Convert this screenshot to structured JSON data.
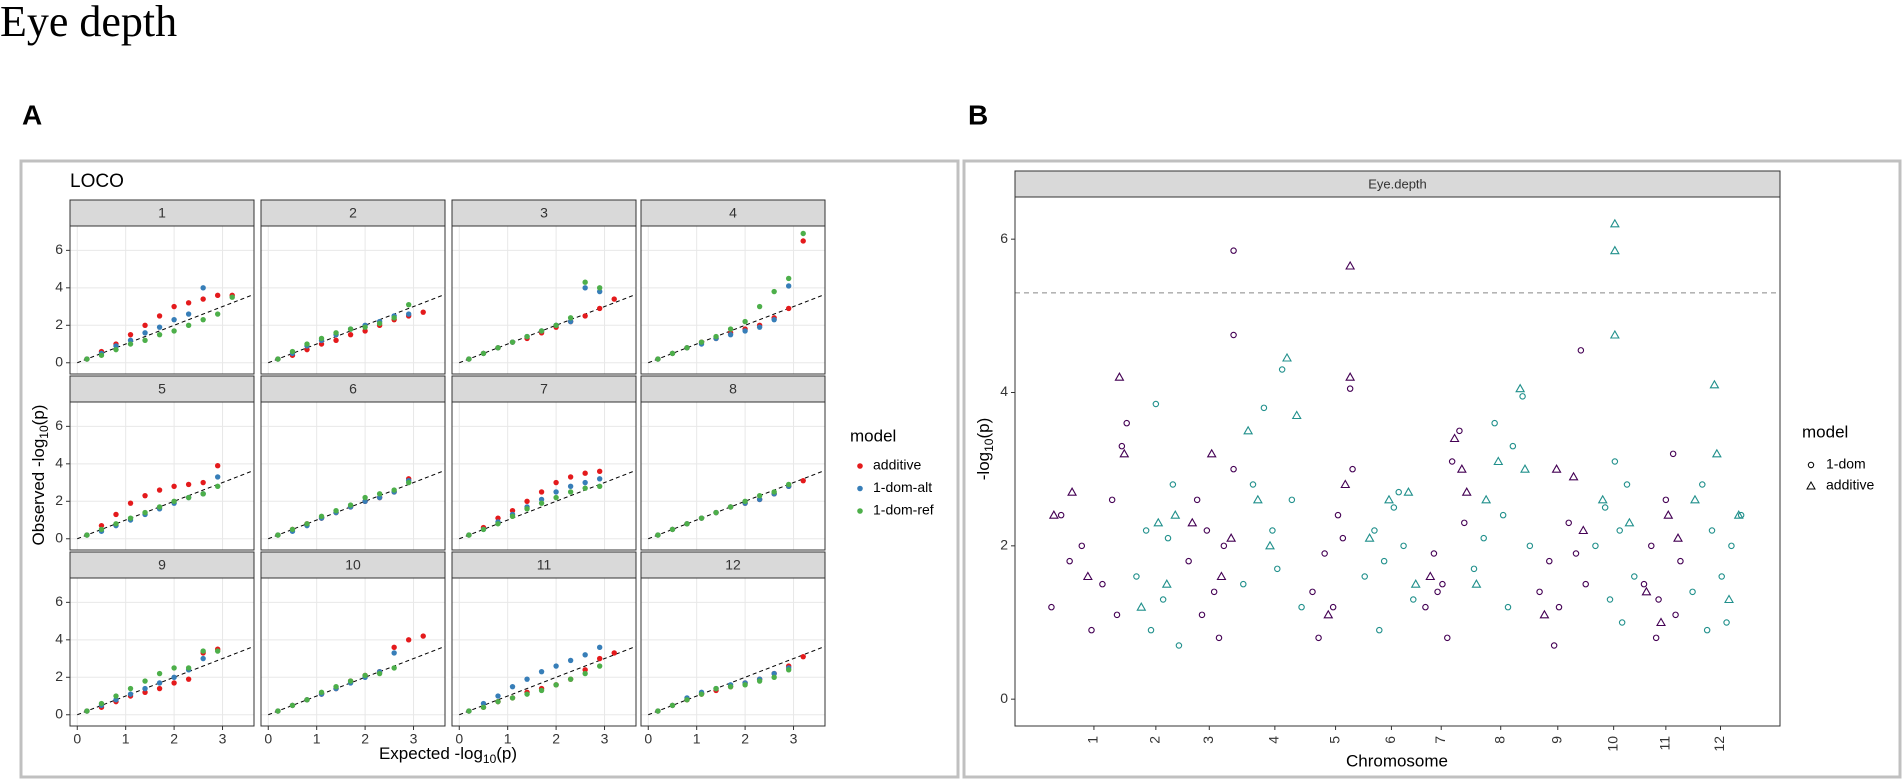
{
  "title": "Eye depth",
  "chart_data": [
    {
      "type": "qq-facets",
      "panel_label": "A",
      "subtitle": "LOCO",
      "x_label": {
        "prefix": "Expected -log",
        "sub": "10",
        "suffix": "(p)"
      },
      "y_label": {
        "prefix": "Observed -log",
        "sub": "10",
        "suffix": "(p)"
      },
      "xlim": [
        -0.15,
        3.65
      ],
      "ylim": [
        -0.6,
        7.3
      ],
      "xticks": [
        0,
        1,
        2,
        3
      ],
      "yticks": [
        0,
        2,
        4,
        6
      ],
      "grid": true,
      "legend_title": "model",
      "legend_position": "right",
      "series": [
        {
          "name": "additive",
          "color": "#e41a1c"
        },
        {
          "name": "1-dom-alt",
          "color": "#377eb8"
        },
        {
          "name": "1-dom-ref",
          "color": "#4daf4a"
        }
      ],
      "x": [
        0.2,
        0.5,
        0.8,
        1.1,
        1.4,
        1.7,
        2.0,
        2.3,
        2.6,
        2.9,
        3.2
      ],
      "facets": [
        {
          "title": "1",
          "values": [
            [
              0.2,
              0.6,
              1.0,
              1.5,
              2.0,
              2.5,
              3.0,
              3.2,
              3.4,
              3.6,
              3.6
            ],
            [
              0.2,
              0.5,
              0.9,
              1.2,
              1.6,
              1.9,
              2.3,
              2.6,
              4.0,
              null,
              null
            ],
            [
              0.2,
              0.4,
              0.7,
              1.0,
              1.2,
              1.5,
              1.7,
              2.0,
              2.3,
              2.6,
              3.5
            ]
          ]
        },
        {
          "title": "2",
          "values": [
            [
              0.2,
              0.4,
              0.7,
              1.0,
              1.2,
              1.5,
              1.7,
              2.0,
              2.3,
              2.5,
              2.7
            ],
            [
              0.2,
              0.5,
              0.9,
              1.2,
              1.5,
              1.8,
              2.0,
              2.2,
              2.5,
              2.6,
              null
            ],
            [
              0.2,
              0.6,
              1.0,
              1.3,
              1.6,
              1.8,
              1.9,
              2.1,
              2.4,
              3.1,
              null
            ]
          ]
        },
        {
          "title": "3",
          "values": [
            [
              0.2,
              0.5,
              0.8,
              1.1,
              1.3,
              1.6,
              1.9,
              2.2,
              2.5,
              2.9,
              3.4
            ],
            [
              0.2,
              0.5,
              0.8,
              1.1,
              1.4,
              1.7,
              2.0,
              2.2,
              4.0,
              3.8,
              null
            ],
            [
              0.2,
              0.5,
              0.8,
              1.1,
              1.4,
              1.7,
              2.0,
              2.4,
              4.3,
              4.0,
              null
            ]
          ]
        },
        {
          "title": "4",
          "values": [
            [
              0.2,
              0.5,
              0.8,
              1.1,
              1.3,
              1.6,
              1.8,
              2.0,
              2.4,
              2.9,
              6.5
            ],
            [
              0.2,
              0.5,
              0.8,
              1.0,
              1.3,
              1.5,
              1.7,
              1.9,
              2.3,
              4.1,
              null
            ],
            [
              0.2,
              0.5,
              0.8,
              1.1,
              1.4,
              1.8,
              2.2,
              3.0,
              3.8,
              4.5,
              6.9
            ]
          ]
        },
        {
          "title": "5",
          "values": [
            [
              0.2,
              0.7,
              1.3,
              1.9,
              2.3,
              2.6,
              2.8,
              2.9,
              3.0,
              3.9,
              null
            ],
            [
              0.2,
              0.4,
              0.7,
              1.0,
              1.3,
              1.6,
              1.9,
              2.2,
              2.4,
              3.3,
              null
            ],
            [
              0.2,
              0.5,
              0.8,
              1.1,
              1.4,
              1.7,
              2.0,
              2.2,
              2.4,
              2.8,
              null
            ]
          ]
        },
        {
          "title": "6",
          "values": [
            [
              0.2,
              0.5,
              0.8,
              1.1,
              1.4,
              1.7,
              2.0,
              2.2,
              2.5,
              3.2,
              null
            ],
            [
              0.2,
              0.4,
              0.7,
              1.1,
              1.4,
              1.7,
              2.0,
              2.2,
              2.5,
              3.1,
              null
            ],
            [
              0.2,
              0.5,
              0.8,
              1.2,
              1.5,
              1.8,
              2.2,
              2.4,
              2.6,
              3.0,
              null
            ]
          ]
        },
        {
          "title": "7",
          "values": [
            [
              0.2,
              0.6,
              1.1,
              1.5,
              2.0,
              2.5,
              3.0,
              3.3,
              3.5,
              3.6,
              null
            ],
            [
              0.2,
              0.5,
              0.9,
              1.3,
              1.7,
              2.1,
              2.5,
              2.8,
              3.0,
              3.2,
              null
            ],
            [
              0.2,
              0.5,
              0.8,
              1.2,
              1.6,
              1.9,
              2.2,
              2.5,
              2.7,
              2.8,
              null
            ]
          ]
        },
        {
          "title": "8",
          "values": [
            [
              0.2,
              0.5,
              0.8,
              1.1,
              1.4,
              1.7,
              1.9,
              2.1,
              2.4,
              2.8,
              3.1
            ],
            [
              0.2,
              0.5,
              0.8,
              1.1,
              1.4,
              1.7,
              1.9,
              2.1,
              2.4,
              2.8,
              null
            ],
            [
              0.2,
              0.5,
              0.8,
              1.1,
              1.4,
              1.7,
              2.0,
              2.3,
              2.5,
              2.9,
              null
            ]
          ]
        },
        {
          "title": "9",
          "values": [
            [
              0.2,
              0.4,
              0.7,
              1.0,
              1.2,
              1.4,
              1.7,
              1.9,
              3.3,
              3.5,
              null
            ],
            [
              0.2,
              0.5,
              0.8,
              1.1,
              1.4,
              1.7,
              2.0,
              2.4,
              3.0,
              null,
              null
            ],
            [
              0.2,
              0.6,
              1.0,
              1.4,
              1.8,
              2.2,
              2.5,
              2.5,
              3.4,
              3.4,
              null
            ]
          ]
        },
        {
          "title": "10",
          "values": [
            [
              0.2,
              0.5,
              0.8,
              1.1,
              1.4,
              1.8,
              2.1,
              2.3,
              3.6,
              4.0,
              4.2
            ],
            [
              0.2,
              0.5,
              0.8,
              1.1,
              1.4,
              1.7,
              2.0,
              2.3,
              3.3,
              null,
              null
            ],
            [
              0.2,
              0.5,
              0.8,
              1.2,
              1.5,
              1.8,
              2.1,
              2.2,
              2.5,
              null,
              null
            ]
          ]
        },
        {
          "title": "11",
          "values": [
            [
              0.2,
              0.4,
              0.7,
              0.9,
              1.2,
              1.4,
              1.6,
              1.9,
              2.4,
              3.0,
              3.3
            ],
            [
              0.2,
              0.6,
              1.0,
              1.5,
              1.9,
              2.3,
              2.6,
              2.9,
              3.2,
              3.6,
              null
            ],
            [
              0.2,
              0.4,
              0.7,
              0.9,
              1.1,
              1.3,
              1.6,
              1.9,
              2.2,
              2.6,
              null
            ]
          ]
        },
        {
          "title": "12",
          "values": [
            [
              0.2,
              0.5,
              0.8,
              1.1,
              1.3,
              1.5,
              1.7,
              1.9,
              2.2,
              2.6,
              3.1
            ],
            [
              0.2,
              0.5,
              0.9,
              1.2,
              1.4,
              1.6,
              1.7,
              1.9,
              2.2,
              2.5,
              null
            ],
            [
              0.2,
              0.5,
              0.8,
              1.1,
              1.4,
              1.5,
              1.6,
              1.8,
              2.0,
              2.4,
              null
            ]
          ]
        }
      ]
    },
    {
      "type": "manhattan",
      "panel_label": "B",
      "facet_title": "Eye.depth",
      "x_label": "Chromosome",
      "y_label": {
        "prefix": "-log",
        "sub": "10",
        "suffix": "(p)"
      },
      "xlim": [
        0,
        630
      ],
      "ylim": [
        -0.35,
        6.55
      ],
      "yticks": [
        0,
        2,
        4,
        6
      ],
      "xticks": [
        {
          "value": 65,
          "label": "1"
        },
        {
          "value": 116,
          "label": "2"
        },
        {
          "value": 160,
          "label": "3"
        },
        {
          "value": 214,
          "label": "4"
        },
        {
          "value": 264,
          "label": "5"
        },
        {
          "value": 310,
          "label": "6"
        },
        {
          "value": 351,
          "label": "7"
        },
        {
          "value": 400,
          "label": "8"
        },
        {
          "value": 447,
          "label": "9"
        },
        {
          "value": 493,
          "label": "10"
        },
        {
          "value": 536,
          "label": "11"
        },
        {
          "value": 581,
          "label": "12"
        }
      ],
      "chromosome_spans": [
        [
          26,
          96
        ],
        [
          96,
          139
        ],
        [
          139,
          184
        ],
        [
          184,
          241
        ],
        [
          241,
          284
        ],
        [
          284,
          334
        ],
        [
          334,
          374
        ],
        [
          374,
          429
        ],
        [
          429,
          474
        ],
        [
          474,
          514
        ],
        [
          514,
          554
        ],
        [
          554,
          604
        ]
      ],
      "chromosome_colors": [
        "#440154",
        "#21908c"
      ],
      "threshold": 5.3,
      "legend_title": "model",
      "legend_position": "right",
      "series": [
        {
          "name": "1-dom",
          "marker": "circle",
          "x": [
            30,
            38,
            45,
            55,
            63,
            72,
            80,
            88,
            92,
            84,
            100,
            108,
            116,
            122,
            130,
            135,
            112,
            126,
            143,
            150,
            158,
            164,
            172,
            180,
            168,
            154,
            180,
            180,
            188,
            196,
            205,
            212,
            220,
            228,
            236,
            216,
            245,
            255,
            262,
            276,
            278,
            270,
            250,
            266,
            288,
            296,
            304,
            312,
            320,
            328,
            300,
            316,
            338,
            345,
            352,
            360,
            366,
            370,
            356,
            348,
            378,
            386,
            395,
            402,
            410,
            418,
            424,
            406,
            432,
            440,
            448,
            456,
            462,
            470,
            444,
            466,
            478,
            486,
            494,
            498,
            504,
            510,
            490,
            500,
            518,
            524,
            530,
            536,
            542,
            548,
            528,
            544,
            558,
            566,
            574,
            582,
            590,
            598,
            586,
            570
          ],
          "values": [
            1.2,
            2.4,
            1.8,
            2.0,
            0.9,
            1.5,
            2.6,
            3.3,
            3.6,
            1.1,
            1.6,
            2.2,
            3.85,
            1.3,
            2.8,
            0.7,
            0.9,
            2.1,
            1.8,
            2.6,
            2.2,
            1.4,
            2.0,
            3.0,
            0.8,
            1.1,
            5.85,
            4.75,
            1.5,
            2.8,
            3.8,
            2.2,
            4.3,
            2.6,
            1.2,
            1.7,
            1.4,
            1.9,
            1.2,
            4.05,
            3.0,
            2.1,
            0.8,
            2.4,
            1.6,
            2.2,
            1.8,
            2.5,
            2.0,
            1.3,
            0.9,
            2.7,
            1.2,
            1.9,
            1.5,
            3.1,
            3.5,
            2.3,
            0.8,
            1.4,
            1.7,
            2.1,
            3.6,
            2.4,
            3.3,
            3.95,
            2.0,
            1.2,
            1.4,
            1.8,
            1.2,
            2.3,
            1.9,
            1.5,
            0.7,
            4.55,
            2.0,
            2.5,
            3.1,
            2.2,
            2.8,
            1.6,
            1.3,
            1.0,
            1.5,
            2.0,
            1.3,
            2.6,
            3.2,
            1.8,
            0.8,
            1.1,
            1.4,
            2.8,
            2.2,
            1.6,
            2.0,
            2.4,
            1.0,
            0.9
          ]
        },
        {
          "name": "additive",
          "marker": "triangle",
          "x": [
            32,
            47,
            86,
            90,
            60,
            104,
            118,
            132,
            125,
            146,
            162,
            170,
            178,
            192,
            200,
            224,
            232,
            210,
            276,
            276,
            272,
            258,
            292,
            308,
            324,
            330,
            362,
            368,
            342,
            372,
            398,
            416,
            420,
            388,
            380,
            446,
            460,
            468,
            436,
            494,
            494,
            494,
            484,
            506,
            520,
            538,
            546,
            532,
            576,
            578,
            560,
            596,
            588
          ],
          "values": [
            2.4,
            2.7,
            4.2,
            3.2,
            1.6,
            1.2,
            2.3,
            2.4,
            1.5,
            2.3,
            3.2,
            1.6,
            2.1,
            3.5,
            2.6,
            4.45,
            3.7,
            2.0,
            5.65,
            4.2,
            2.8,
            1.1,
            2.1,
            2.6,
            2.7,
            1.5,
            3.4,
            3.0,
            1.6,
            2.7,
            3.1,
            4.05,
            3.0,
            2.6,
            1.5,
            3.0,
            2.9,
            2.2,
            1.1,
            6.2,
            5.85,
            4.75,
            2.6,
            2.3,
            1.4,
            2.4,
            2.1,
            1.0,
            4.1,
            3.2,
            2.6,
            2.4,
            1.3
          ]
        }
      ]
    }
  ]
}
